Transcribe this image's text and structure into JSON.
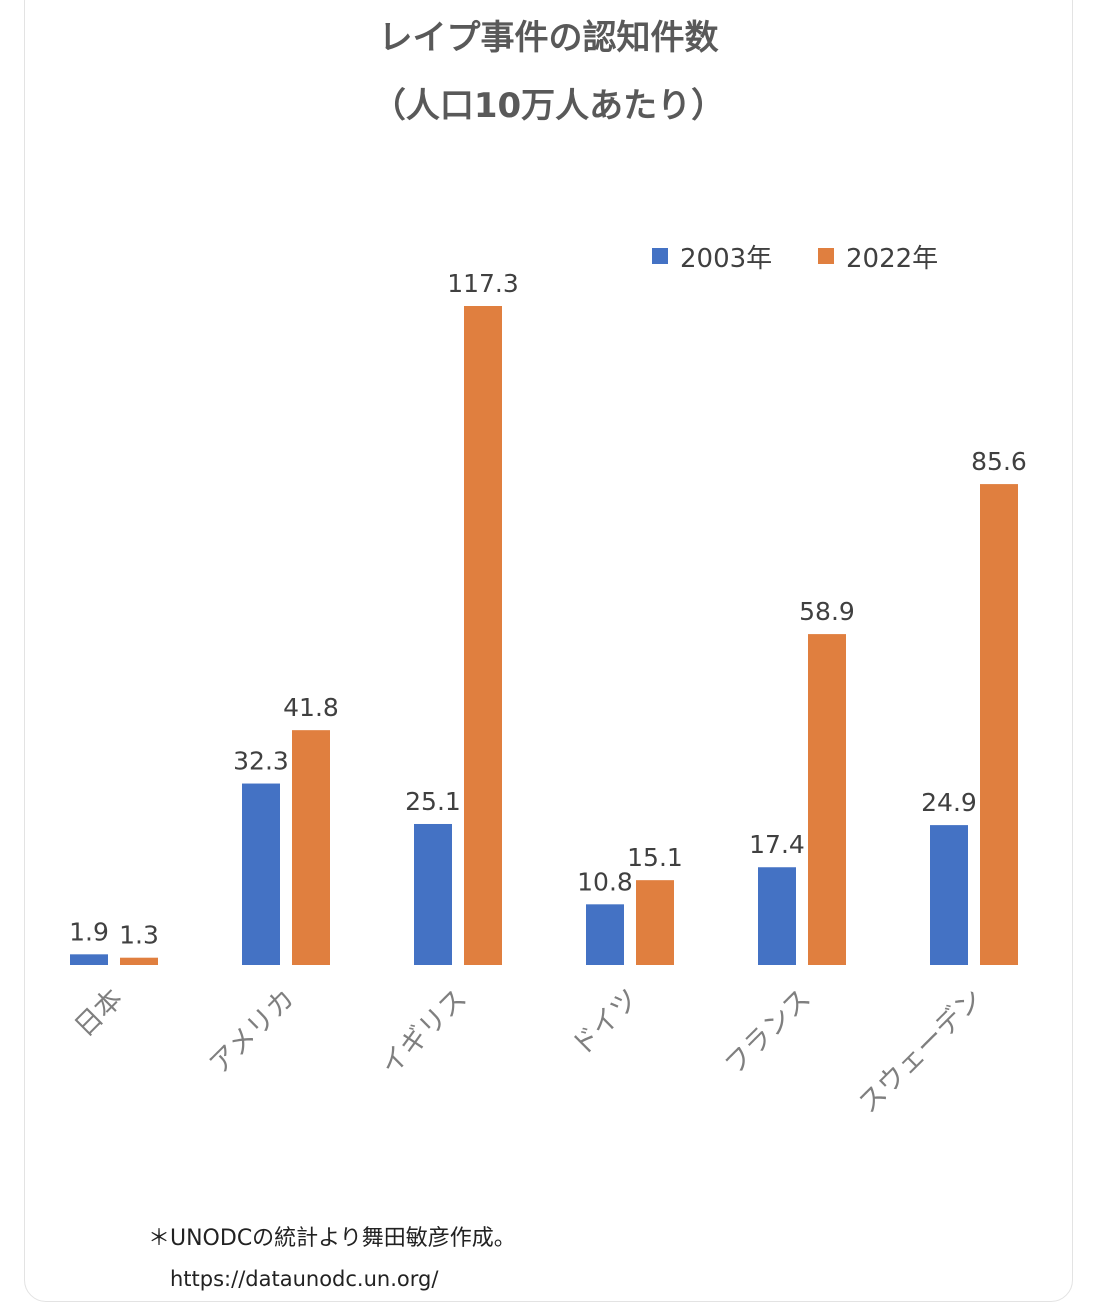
{
  "chart_data": {
    "type": "bar",
    "title": "レイプ事件の認知件数",
    "subtitle": "（人口10万人あたり）",
    "categories": [
      "日本",
      "アメリカ",
      "イギリス",
      "ドイツ",
      "フランス",
      "スウェーデン"
    ],
    "series": [
      {
        "name": "2003年",
        "color": "#4472c4",
        "values": [
          1.9,
          32.3,
          25.1,
          10.8,
          17.4,
          24.9
        ]
      },
      {
        "name": "2022年",
        "color": "#e07f3f",
        "values": [
          1.3,
          41.8,
          117.3,
          15.1,
          58.9,
          85.6
        ]
      }
    ],
    "data_labels": true,
    "legend_position": "top-right",
    "ylim": [
      0,
      117.3
    ],
    "grid": false
  },
  "footnote": "＊UNODCの統計より舞田敏彦作成。",
  "source_url": "https://dataunodc.un.org/"
}
